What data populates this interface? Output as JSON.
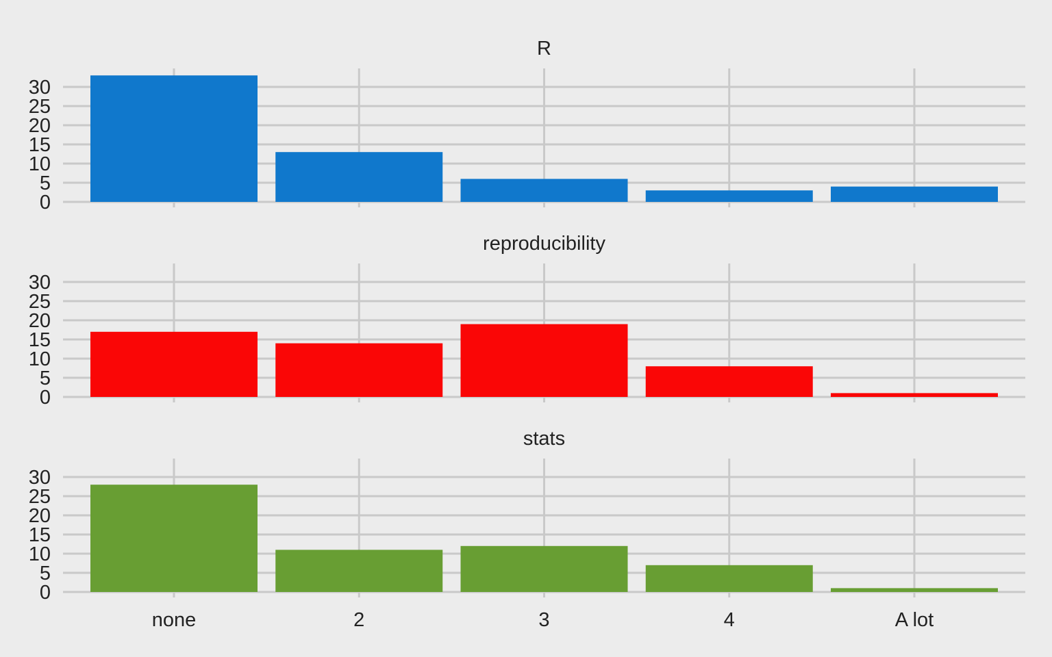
{
  "chart_data": {
    "type": "bar",
    "layout": "faceted-vertical",
    "categories": [
      "none",
      "2",
      "3",
      "4",
      "A lot"
    ],
    "ylim": [
      0,
      34
    ],
    "yticks": [
      0,
      5,
      10,
      15,
      20,
      25,
      30
    ],
    "ytick_labels": [
      "0",
      "5",
      "10",
      "15",
      "20",
      "25",
      "30"
    ],
    "grid": true,
    "legend": "none",
    "background": "#ececec",
    "grid_color": "#c9c9c9",
    "panels": [
      {
        "title": "R",
        "color": "#1078cc",
        "values": [
          33,
          13,
          6,
          3,
          4
        ]
      },
      {
        "title": "reproducibility",
        "color": "#fa0606",
        "values": [
          17,
          14,
          19,
          8,
          1
        ]
      },
      {
        "title": "stats",
        "color": "#689e33",
        "values": [
          28,
          11,
          12,
          7,
          1
        ]
      }
    ]
  }
}
